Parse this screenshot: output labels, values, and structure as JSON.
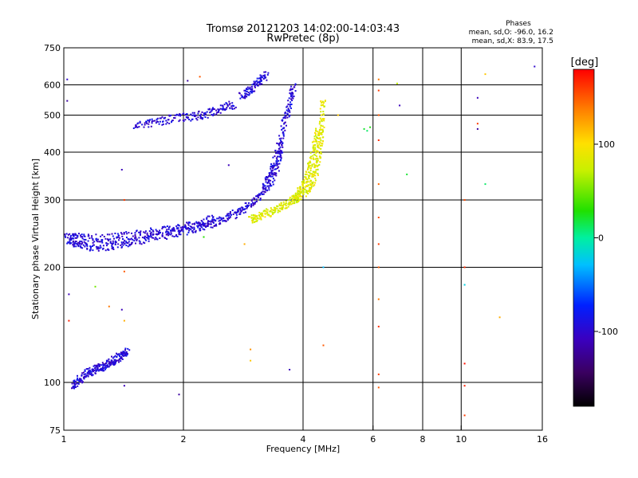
{
  "chart_data": {
    "type": "scatter",
    "title": "Tromsø 20121203 14:02:00-14:03:43",
    "subtitle": "RwPretec (8p)",
    "xlabel": "Frequency [MHz]",
    "ylabel": "Stationary phase Virtual Height [km]",
    "x_scale": "log",
    "y_scale": "log",
    "xlim": [
      1,
      16
    ],
    "ylim": [
      75,
      750
    ],
    "xticks": [
      "1",
      "2",
      "4",
      "6",
      "8",
      "10",
      "16"
    ],
    "xtick_values": [
      1,
      2,
      4,
      6,
      8,
      10,
      16
    ],
    "x_gridlines": [
      2,
      4,
      6,
      8,
      10
    ],
    "yticks": [
      "75",
      "100",
      "200",
      "300",
      "400",
      "500",
      "600",
      "750"
    ],
    "ytick_values": [
      75,
      100,
      200,
      300,
      400,
      500,
      600,
      750
    ],
    "y_gridlines": [
      100,
      200,
      300,
      400,
      500,
      600
    ],
    "grid": true,
    "stats": {
      "heading": "Phases",
      "line_o": "mean, sd,O: -96.0, 16.2",
      "line_x": "mean, sd,X:  83.9, 17.5"
    },
    "colorbar": {
      "label": "[deg]",
      "min": -180,
      "max": 180,
      "ticks": [
        "100",
        "0",
        "-100"
      ],
      "tick_values": [
        100,
        0,
        -100
      ]
    },
    "traces": [
      {
        "mode": "O",
        "phase_mean": -96.0,
        "phase_sd": 16.2,
        "x": [
          1.02,
          1.1,
          1.2,
          1.35,
          1.5,
          1.7,
          1.9,
          2.1,
          2.3,
          2.5,
          2.7,
          2.9,
          3.1,
          3.3,
          3.45,
          3.55
        ],
        "y": [
          235,
          228,
          226,
          228,
          234,
          240,
          246,
          252,
          258,
          266,
          276,
          288,
          305,
          330,
          370,
          420
        ]
      },
      {
        "mode": "O",
        "phase_mean": -96.0,
        "phase_sd": 16.2,
        "x": [
          1.02,
          1.1,
          1.25,
          1.4,
          1.6,
          1.8,
          2.0,
          2.2,
          2.4
        ],
        "y": [
          240,
          239,
          238,
          241,
          245,
          250,
          255,
          260,
          268
        ]
      },
      {
        "mode": "O",
        "phase_mean": -96.0,
        "phase_sd": 16.2,
        "x": [
          3.2,
          3.35,
          3.5,
          3.6,
          3.7,
          3.8
        ],
        "y": [
          330,
          360,
          420,
          480,
          540,
          600
        ]
      },
      {
        "mode": "O",
        "phase_mean": -96.0,
        "phase_sd": 16.2,
        "x": [
          1.5,
          1.7,
          1.9,
          2.1,
          2.3,
          2.5,
          2.7
        ],
        "y": [
          465,
          480,
          490,
          495,
          505,
          520,
          535
        ]
      },
      {
        "mode": "O",
        "phase_mean": -96.0,
        "phase_sd": 16.2,
        "x": [
          2.8,
          2.95,
          3.1,
          3.25
        ],
        "y": [
          560,
          580,
          610,
          640
        ]
      },
      {
        "mode": "O",
        "phase_mean": -96.0,
        "phase_sd": 16.2,
        "x": [
          1.05,
          1.1,
          1.15,
          1.2,
          1.25,
          1.3,
          1.35,
          1.4,
          1.45
        ],
        "y": [
          98,
          102,
          106,
          108,
          110,
          112,
          115,
          118,
          121
        ]
      },
      {
        "mode": "X",
        "phase_mean": 83.9,
        "phase_sd": 17.5,
        "x": [
          2.95,
          3.1,
          3.3,
          3.5,
          3.7,
          3.9,
          4.1,
          4.25,
          4.35,
          4.42,
          4.47,
          4.5
        ],
        "y": [
          268,
          272,
          278,
          286,
          295,
          306,
          320,
          340,
          370,
          420,
          480,
          560
        ]
      },
      {
        "mode": "X",
        "phase_mean": 83.9,
        "phase_sd": 17.5,
        "x": [
          3.8,
          3.95,
          4.1,
          4.2,
          4.3,
          4.38
        ],
        "y": [
          300,
          320,
          345,
          380,
          420,
          460
        ]
      }
    ],
    "scattered_points": [
      {
        "x": 6.2,
        "y": 620,
        "phase": 140
      },
      {
        "x": 6.2,
        "y": 580,
        "phase": 160
      },
      {
        "x": 6.2,
        "y": 500,
        "phase": 150
      },
      {
        "x": 6.2,
        "y": 430,
        "phase": 165
      },
      {
        "x": 6.2,
        "y": 330,
        "phase": 145
      },
      {
        "x": 6.2,
        "y": 270,
        "phase": 155
      },
      {
        "x": 6.2,
        "y": 230,
        "phase": 160
      },
      {
        "x": 6.2,
        "y": 200,
        "phase": 150
      },
      {
        "x": 6.2,
        "y": 165,
        "phase": 140
      },
      {
        "x": 6.2,
        "y": 140,
        "phase": 165
      },
      {
        "x": 6.2,
        "y": 105,
        "phase": 160
      },
      {
        "x": 6.2,
        "y": 97,
        "phase": 150
      },
      {
        "x": 10.2,
        "y": 300,
        "phase": 155
      },
      {
        "x": 10.2,
        "y": 200,
        "phase": 165
      },
      {
        "x": 10.2,
        "y": 180,
        "phase": -20
      },
      {
        "x": 10.2,
        "y": 112,
        "phase": 175
      },
      {
        "x": 10.2,
        "y": 98,
        "phase": 170
      },
      {
        "x": 10.2,
        "y": 82,
        "phase": 160
      },
      {
        "x": 11.0,
        "y": 555,
        "phase": -110
      },
      {
        "x": 11.0,
        "y": 475,
        "phase": 160
      },
      {
        "x": 11.0,
        "y": 460,
        "phase": -120
      },
      {
        "x": 11.5,
        "y": 640,
        "phase": 110
      },
      {
        "x": 11.5,
        "y": 330,
        "phase": 10
      },
      {
        "x": 12.5,
        "y": 148,
        "phase": 120
      },
      {
        "x": 15.3,
        "y": 670,
        "phase": -100
      },
      {
        "x": 5.7,
        "y": 460,
        "phase": 20
      },
      {
        "x": 5.8,
        "y": 455,
        "phase": 10
      },
      {
        "x": 5.9,
        "y": 465,
        "phase": 25
      },
      {
        "x": 7.0,
        "y": 530,
        "phase": -110
      },
      {
        "x": 7.3,
        "y": 350,
        "phase": 20
      },
      {
        "x": 6.9,
        "y": 605,
        "phase": 70
      },
      {
        "x": 4.9,
        "y": 500,
        "phase": 110
      },
      {
        "x": 4.5,
        "y": 200,
        "phase": -30
      },
      {
        "x": 4.5,
        "y": 125,
        "phase": 150
      },
      {
        "x": 3.7,
        "y": 108,
        "phase": -110
      },
      {
        "x": 2.95,
        "y": 122,
        "phase": 130
      },
      {
        "x": 2.95,
        "y": 114,
        "phase": 110
      },
      {
        "x": 1.95,
        "y": 93,
        "phase": -120
      },
      {
        "x": 1.02,
        "y": 620,
        "phase": -100
      },
      {
        "x": 1.02,
        "y": 545,
        "phase": -120
      },
      {
        "x": 1.03,
        "y": 170,
        "phase": -110
      },
      {
        "x": 1.03,
        "y": 145,
        "phase": 170
      },
      {
        "x": 1.2,
        "y": 178,
        "phase": 50
      },
      {
        "x": 1.3,
        "y": 158,
        "phase": 140
      },
      {
        "x": 1.4,
        "y": 155,
        "phase": -110
      },
      {
        "x": 1.4,
        "y": 360,
        "phase": -110
      },
      {
        "x": 1.42,
        "y": 300,
        "phase": 160
      },
      {
        "x": 1.42,
        "y": 195,
        "phase": 150
      },
      {
        "x": 1.42,
        "y": 145,
        "phase": 120
      },
      {
        "x": 1.42,
        "y": 98,
        "phase": -110
      },
      {
        "x": 2.05,
        "y": 615,
        "phase": -120
      },
      {
        "x": 2.6,
        "y": 370,
        "phase": -110
      },
      {
        "x": 2.85,
        "y": 230,
        "phase": 120
      },
      {
        "x": 2.2,
        "y": 630,
        "phase": 150
      },
      {
        "x": 2.25,
        "y": 240,
        "phase": 30
      }
    ]
  }
}
